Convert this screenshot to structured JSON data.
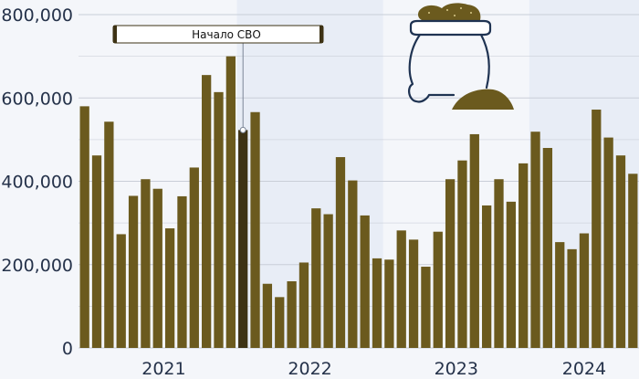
{
  "chart_data": {
    "type": "bar",
    "ylim": [
      0,
      800000
    ],
    "yticks": [
      0,
      200000,
      400000,
      600000,
      800000
    ],
    "ytick_labels": [
      "0",
      "200,000",
      "400,000",
      "600,000",
      "800,000"
    ],
    "year_labels": [
      "2021",
      "2022",
      "2023",
      "2024"
    ],
    "grid": true,
    "colors": {
      "bar": "#6b5a1e",
      "highlight": "#3d3214",
      "band": "#e8edf6",
      "background": "#f4f6fa",
      "grid": "#c9ced8",
      "text": "#25324a",
      "icon": "#1f3352"
    },
    "annotation": {
      "text": "Начало СВО",
      "month_index": 13
    },
    "months": [
      "2020-12",
      "2021-01",
      "2021-02",
      "2021-03",
      "2021-04",
      "2021-05",
      "2021-06",
      "2021-07",
      "2021-08",
      "2021-09",
      "2021-10",
      "2021-11",
      "2021-12",
      "2022-01",
      "2022-02",
      "2022-03",
      "2022-04",
      "2022-05",
      "2022-06",
      "2022-07",
      "2022-08",
      "2022-09",
      "2022-10",
      "2022-11",
      "2022-12",
      "2023-01",
      "2023-02",
      "2023-03",
      "2023-04",
      "2023-05",
      "2023-06",
      "2023-07",
      "2023-08",
      "2023-09",
      "2023-10",
      "2023-11",
      "2023-12",
      "2024-01",
      "2024-02",
      "2024-03",
      "2024-04",
      "2024-05",
      "2024-06",
      "2024-07",
      "2024-08",
      "2024-09"
    ],
    "values": [
      580000,
      462000,
      543000,
      273000,
      365000,
      405000,
      382000,
      287000,
      364000,
      433000,
      655000,
      614000,
      700000,
      523000,
      566000,
      154000,
      122000,
      160000,
      205000,
      335000,
      321000,
      458000,
      402000,
      318000,
      215000,
      212000,
      282000,
      260000,
      195000,
      279000,
      405000,
      450000,
      513000,
      342000,
      405000,
      351000,
      443000,
      519000,
      480000,
      254000,
      237000,
      275000,
      572000,
      505000,
      462000,
      418000
    ]
  },
  "icon": {
    "name": "grain-sack-icon"
  }
}
